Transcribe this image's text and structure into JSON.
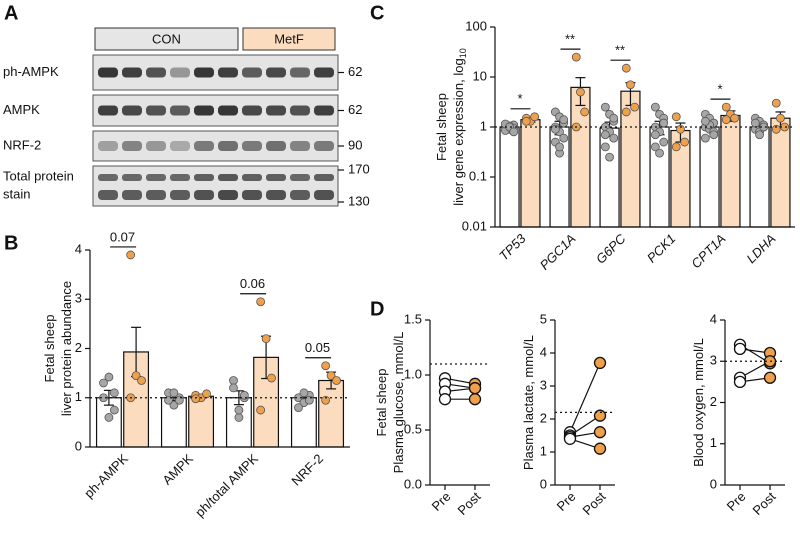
{
  "panel_labels": [
    "A",
    "B",
    "C",
    "D"
  ],
  "blot": {
    "groups": [
      "CON",
      "MetF"
    ],
    "rows": [
      {
        "label": "ph-AMPK",
        "kda": [
          62
        ]
      },
      {
        "label": "AMPK",
        "kda": [
          62
        ]
      },
      {
        "label": "NRF-2",
        "kda": [
          90
        ]
      },
      {
        "label": [
          "Total protein",
          "stain"
        ],
        "kda": [
          170,
          130
        ]
      }
    ]
  },
  "chart_data": [
    {
      "type": "bar",
      "ylabel": [
        "Fetal sheep",
        "liver protein abundance"
      ],
      "categories": [
        "ph-AMPK",
        "AMPK",
        "ph/total AMPK",
        "NRF-2"
      ],
      "ylim": [
        0,
        4
      ],
      "yticks": [
        0,
        1,
        2,
        3,
        4
      ],
      "reference_line": 1,
      "p_values": [
        "0.07",
        null,
        "0.06",
        "0.05"
      ],
      "series": [
        {
          "color": "#ffffff",
          "point_color": "#a6a6a6",
          "values": [
            1.0,
            1.0,
            1.0,
            1.0
          ],
          "errors": [
            0.15,
            0.06,
            0.14,
            0.05
          ],
          "points": [
            [
              1.0,
              0.6,
              0.75,
              1.3,
              1.42,
              1.1
            ],
            [
              1.1,
              0.85,
              1.0,
              0.95,
              1.1,
              0.95
            ],
            [
              1.35,
              0.6,
              1.0,
              1.2,
              0.75,
              1.05
            ],
            [
              1.0,
              0.9,
              1.05,
              0.8,
              1.1,
              0.95
            ]
          ]
        },
        {
          "color": "#fbdcbf",
          "point_color": "#f0a04b",
          "values": [
            1.93,
            1.03,
            1.82,
            1.35
          ],
          "errors": [
            0.5,
            0.03,
            0.43,
            0.17
          ],
          "points": [
            [
              3.9,
              1.45,
              1.35,
              1.0
            ],
            [
              1.05,
              1.0,
              1.08,
              0.98
            ],
            [
              2.95,
              2.2,
              1.4,
              0.75
            ],
            [
              1.65,
              1.45,
              1.35,
              0.95
            ]
          ]
        }
      ]
    },
    {
      "type": "bar",
      "log_scale": true,
      "italic_categories": true,
      "ylabel": [
        "Fetal sheep",
        "liver gene expression, log"
      ],
      "ylabel_subscript": "10",
      "categories": [
        "TP53",
        "PGC1A",
        "G6PC",
        "PCK1",
        "CPT1A",
        "LDHA"
      ],
      "ylim": [
        0.01,
        100
      ],
      "yticks": [
        0.01,
        0.1,
        1,
        10,
        100
      ],
      "reference_line": 1,
      "p_values": [
        "*",
        "**",
        "**",
        null,
        "*",
        null
      ],
      "series": [
        {
          "color": "#ffffff",
          "point_color": "#a6a6a6",
          "values": [
            1.0,
            1.0,
            0.95,
            1.0,
            1.0,
            1.0
          ],
          "errors": [
            0.1,
            0.3,
            0.3,
            0.3,
            0.15,
            0.1
          ],
          "points": [
            [
              1.0,
              0.9,
              1.1,
              0.85,
              1.05,
              0.95,
              1.15,
              1.0,
              0.8
            ],
            [
              2.0,
              1.6,
              1.2,
              1.0,
              0.8,
              0.6,
              0.5,
              0.3,
              1.4,
              0.9,
              0.4
            ],
            [
              2.5,
              1.8,
              1.3,
              1.0,
              0.8,
              0.6,
              0.4,
              0.25,
              1.5,
              0.7
            ],
            [
              2.5,
              1.8,
              1.5,
              1.0,
              0.8,
              0.5,
              0.4,
              0.3,
              1.2,
              0.7
            ],
            [
              1.8,
              1.5,
              1.2,
              1.0,
              0.9,
              0.8,
              0.6,
              1.1,
              0.7,
              1.3
            ],
            [
              1.5,
              1.3,
              1.0,
              0.9,
              0.8,
              1.1,
              1.2,
              0.7,
              1.0
            ]
          ]
        },
        {
          "color": "#fbdcbf",
          "point_color": "#f0a04b",
          "values": [
            1.4,
            6.2,
            5.2,
            0.85,
            1.7,
            1.5
          ],
          "errors": [
            0.15,
            3.5,
            2.5,
            0.35,
            0.4,
            0.5
          ],
          "points": [
            [
              1.5,
              1.3,
              1.6,
              1.3
            ],
            [
              25,
              5,
              2.0,
              1.0
            ],
            [
              15,
              7,
              2.5,
              2.0
            ],
            [
              1.6,
              0.9,
              0.5,
              0.4
            ],
            [
              2.5,
              1.8,
              1.5,
              1.4
            ],
            [
              3.0,
              1.5,
              1.0,
              0.9
            ]
          ]
        }
      ]
    },
    {
      "type": "paired",
      "ylabel": [
        "Fetal sheep",
        "Plasma glucose, mmol/L"
      ],
      "categories": [
        "Pre",
        "Post"
      ],
      "ylim": [
        0,
        1.5
      ],
      "yticks": [
        {
          "value": 0,
          "label": "0.0"
        },
        {
          "value": 0.5,
          "label": "0.5"
        },
        {
          "value": 1,
          "label": "1.0"
        },
        {
          "value": 1.5,
          "label": "1.5"
        }
      ],
      "reference_line": 1.1,
      "colors": [
        "#ffffff",
        "#f0a04b"
      ],
      "series": [
        {
          "values": [
            0.97,
            0.92
          ]
        },
        {
          "values": [
            0.92,
            0.88
          ]
        },
        {
          "values": [
            0.85,
            0.88
          ]
        },
        {
          "values": [
            0.78,
            0.78
          ]
        }
      ]
    },
    {
      "type": "paired",
      "ylabel": [
        "Plasma lactate, mmol/L"
      ],
      "categories": [
        "Pre",
        "Post"
      ],
      "ylim": [
        0,
        5
      ],
      "yticks": [
        0,
        1,
        2,
        3,
        4,
        5
      ],
      "reference_line": 2.2,
      "colors": [
        "#ffffff",
        "#f0a04b"
      ],
      "series": [
        {
          "values": [
            1.6,
            3.7
          ]
        },
        {
          "values": [
            1.5,
            2.1
          ]
        },
        {
          "values": [
            1.45,
            1.6
          ]
        },
        {
          "values": [
            1.4,
            1.1
          ]
        }
      ]
    },
    {
      "type": "paired",
      "ylabel": [
        "Blood oxygen, mmol/L"
      ],
      "categories": [
        "Pre",
        "Post"
      ],
      "ylim": [
        0,
        4
      ],
      "yticks": [
        0,
        1,
        2,
        3,
        4
      ],
      "reference_line": 3.0,
      "colors": [
        "#ffffff",
        "#f0a04b"
      ],
      "series": [
        {
          "values": [
            3.4,
            2.95
          ]
        },
        {
          "values": [
            3.3,
            3.2
          ]
        },
        {
          "values": [
            2.6,
            3.0
          ]
        },
        {
          "values": [
            2.5,
            2.6
          ]
        }
      ]
    }
  ]
}
